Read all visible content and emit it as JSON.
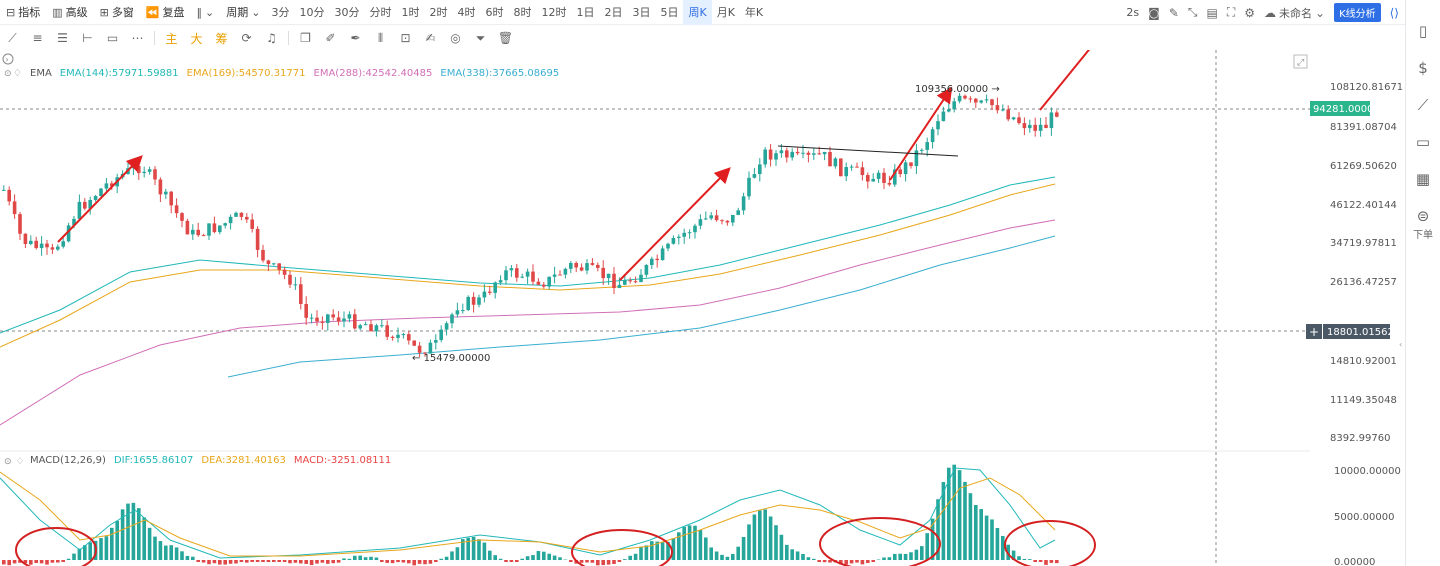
{
  "toolbar": {
    "indicators_label": "指标",
    "advanced_label": "高级",
    "multi_window_label": "多窗",
    "replay_label": "复盘",
    "period_label": "周期",
    "periods": [
      "3分",
      "10分",
      "30分",
      "分时",
      "1时",
      "2时",
      "4时",
      "6时",
      "8时",
      "12时",
      "1日",
      "2日",
      "3日",
      "5日",
      "周K",
      "月K",
      "年K"
    ],
    "active_period": "周K",
    "interval_label": "2s",
    "layout_name": "未命名",
    "analysis_button": "K线分析"
  },
  "drawing_tools": {
    "cn_tools": [
      "主",
      "大",
      "筹"
    ]
  },
  "sidebar": {
    "order_label": "下单"
  },
  "ema_legend": {
    "title": "EMA",
    "items": [
      {
        "text": "EMA(144):57971.59881",
        "color": "#22b8b8"
      },
      {
        "text": "EMA(169):54570.31771",
        "color": "#e8a71c"
      },
      {
        "text": "EMA(288):42542.40485",
        "color": "#d16fb8"
      },
      {
        "text": "EMA(338):37665.08695",
        "color": "#3aaed0"
      }
    ]
  },
  "macd_legend": {
    "title": "MACD(12,26,9)",
    "items": [
      {
        "text": "DIF:1655.86107",
        "color": "#22b8b8"
      },
      {
        "text": "DEA:3281.40163",
        "color": "#e8a71c"
      },
      {
        "text": "MACD:-3251.08111",
        "color": "#e84545"
      }
    ]
  },
  "price_axis": {
    "labels": [
      "108120.81671",
      "81391.08704",
      "61269.50620",
      "46122.40144",
      "34719.97811",
      "26136.47257",
      "14810.92001",
      "11149.35048",
      "8392.99760"
    ],
    "last_price": "94281.00000",
    "crosshair_price": "18801.01562"
  },
  "macd_axis": {
    "labels": [
      "10000.00000",
      "5000.00000",
      "0.00000"
    ]
  },
  "annotations": {
    "high": "109356.00000",
    "low": "15479.00000"
  },
  "colors": {
    "up": "#26a69a",
    "down": "#e04848",
    "arrow": "#e02020",
    "accent": "#2f6fe6",
    "last_price_bg": "#2bb58d",
    "crosshair_bg": "#4a5866"
  },
  "chart_data": [
    {
      "type": "candlestick",
      "title": "",
      "yscale": "log",
      "ylim": [
        7000,
        125000
      ],
      "candles": [],
      "series": []
    },
    {
      "type": "bar",
      "title": "MACD(12,26,9)",
      "series": []
    }
  ]
}
